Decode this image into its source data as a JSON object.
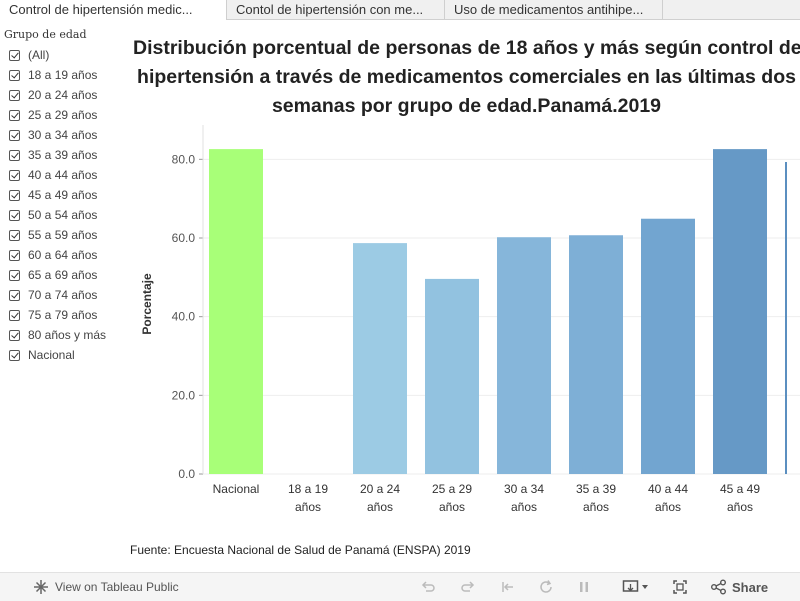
{
  "tabs": [
    {
      "label": "Control de hipertensión medic..."
    },
    {
      "label": "Contol de hipertensión con me..."
    },
    {
      "label": "Uso de medicamentos antihipe..."
    }
  ],
  "filter": {
    "title": "Grupo de edad",
    "items": [
      "(All)",
      "18 a 19 años",
      "20 a 24 años",
      "25 a 29 años",
      "30 a 34 años",
      "35 a 39 años",
      "40 a 44 años",
      "45 a 49 años",
      "50 a 54 años",
      "55 a 59 años",
      "60 a 64 años",
      "65 a 69 años",
      "70 a 74 años",
      "75 a 79 años",
      "80 años y más",
      "Nacional"
    ]
  },
  "title": {
    "line1": "Distribución porcentual de personas de 18 años y más según control de",
    "line2": "hipertensión a través de medicamentos comerciales en las últimas dos",
    "line3": "semanas por grupo de edad.Panamá.2019"
  },
  "chart_data": {
    "type": "bar",
    "ylabel": "Porcentaje",
    "xlabel": "",
    "ylim": [
      0,
      90
    ],
    "yticks": [
      0,
      20,
      40,
      60,
      80
    ],
    "ytick_labels": [
      "0.0",
      "20.0",
      "40.0",
      "60.0",
      "80.0"
    ],
    "categories": [
      "Nacional",
      "18 a 19 años",
      "20 a 24 años",
      "25 a 29 años",
      "30 a 34 años",
      "35 a 39 años",
      "40 a 44 años",
      "45 a 49 años"
    ],
    "values": [
      82.6,
      null,
      58.7,
      49.6,
      60.2,
      60.7,
      64.9,
      82.6
    ],
    "colors": [
      "#a8ff78",
      "#a6d2e8",
      "#9ccbe4",
      "#92c2e0",
      "#86b6da",
      "#7eafd6",
      "#72a5d0",
      "#6699c6"
    ]
  },
  "source": "Fuente: Encuesta Nacional de Salud de Panamá (ENSPA) 2019",
  "toolbar": {
    "view_label": "View on Tableau Public",
    "share_label": "Share"
  }
}
